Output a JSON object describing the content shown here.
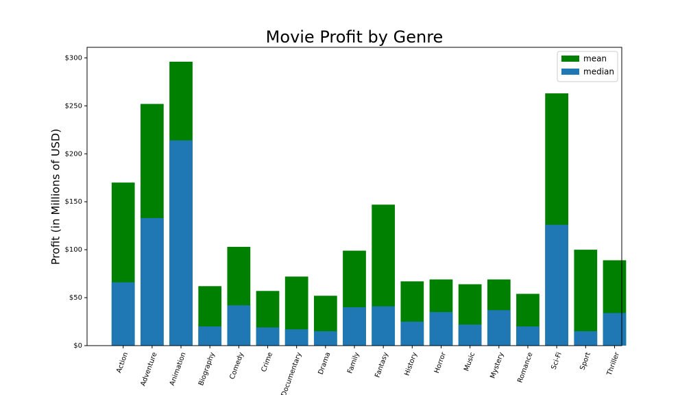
{
  "chart_data": {
    "type": "bar",
    "title": "Movie Profit by Genre",
    "y_label": "Profit (in Millions of USD)",
    "categories": [
      "Action",
      "Adventure",
      "Animation",
      "Biography",
      "Comedy",
      "Crime",
      "Documentary",
      "Drama",
      "Family",
      "Fantasy",
      "History",
      "Horror",
      "Music",
      "Mystery",
      "Romance",
      "Sci-Fi",
      "Sport",
      "Thriller"
    ],
    "series": [
      {
        "name": "mean",
        "color": "#008000",
        "values": [
          170,
          252,
          296,
          62,
          103,
          57,
          72,
          52,
          99,
          147,
          67,
          69,
          64,
          69,
          54,
          263,
          100,
          89
        ]
      },
      {
        "name": "median",
        "color": "#1f77b4",
        "values": [
          66,
          133,
          214,
          20,
          42,
          19,
          17,
          15,
          40,
          41,
          25,
          35,
          22,
          37,
          20,
          126,
          15,
          34
        ]
      }
    ],
    "ylim": [
      0,
      311
    ],
    "yticks": [
      {
        "value": 0,
        "label": "$0"
      },
      {
        "value": 50,
        "label": "$50"
      },
      {
        "value": 100,
        "label": "$100"
      },
      {
        "value": 150,
        "label": "$150"
      },
      {
        "value": 200,
        "label": "$200"
      },
      {
        "value": 250,
        "label": "$250"
      },
      {
        "value": 300,
        "label": "$300"
      }
    ],
    "legend": "upper right"
  }
}
